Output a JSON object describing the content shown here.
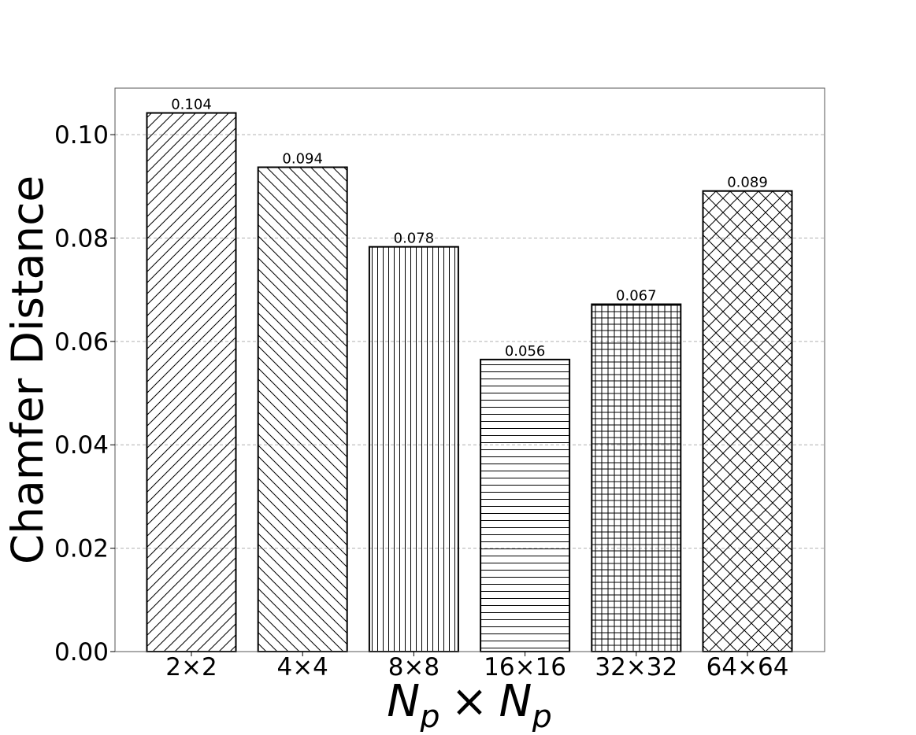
{
  "chart_data": {
    "type": "bar",
    "categories": [
      "2×2",
      "4×4",
      "8×8",
      "16×16",
      "32×32",
      "64×64"
    ],
    "values": [
      0.104,
      0.094,
      0.078,
      0.056,
      0.067,
      0.089
    ],
    "true_values": [
      0.1042,
      0.0937,
      0.0783,
      0.0565,
      0.0672,
      0.0891
    ],
    "data_labels": [
      "0.104",
      "0.094",
      "0.078",
      "0.056",
      "0.067",
      "0.089"
    ],
    "hatches": [
      "diag-right",
      "diag-left",
      "vertical",
      "horizontal",
      "grid",
      "crosshatch"
    ],
    "xlabel": {
      "main": "N",
      "sub": "p",
      "times": "×"
    },
    "ylabel": "Chamfer Distance",
    "ylim": [
      0,
      0.109
    ],
    "yticks": [
      "0.00",
      "0.02",
      "0.04",
      "0.06",
      "0.08",
      "0.10"
    ],
    "ytick_values": [
      0,
      0.02,
      0.04,
      0.06,
      0.08,
      0.1
    ],
    "grid": "y-dashed",
    "colors": {
      "bar_fill": "#ffffff",
      "edge": "#000000",
      "grid": "#b0b0b0"
    }
  }
}
